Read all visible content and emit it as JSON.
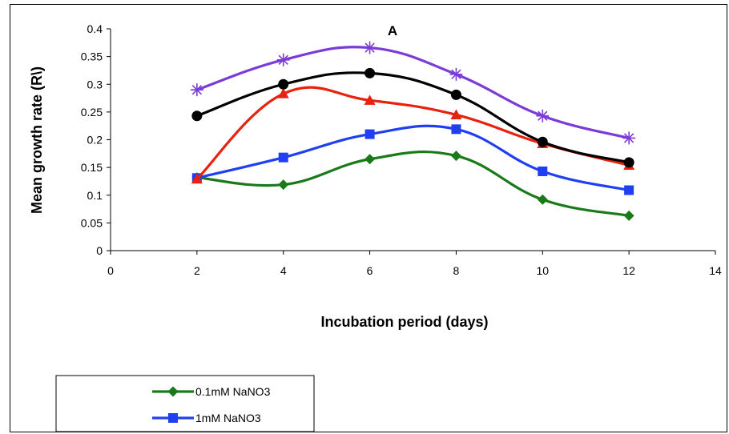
{
  "chart_data": {
    "type": "line",
    "panel_label": "A",
    "xlabel": "Incubation period (days)",
    "ylabel": "Mean growth rate (R\\)",
    "xlim": [
      0,
      14
    ],
    "ylim": [
      0,
      0.4
    ],
    "x_ticks": [
      "0",
      "2",
      "4",
      "6",
      "8",
      "10",
      "12",
      "14"
    ],
    "y_ticks": [
      "0",
      "0.05",
      "0.1",
      "0.15",
      "0.2",
      "0.25",
      "0.3",
      "0.35",
      "0.4"
    ],
    "grid": false,
    "x": [
      2,
      4,
      6,
      8,
      10,
      12
    ],
    "series": [
      {
        "name": "0.1mM NaNO3",
        "color": "#1a7a1a",
        "marker": "diamond",
        "values": [
          0.132,
          0.119,
          0.165,
          0.171,
          0.092,
          0.063
        ]
      },
      {
        "name": "1mM NaNO3",
        "color": "#1f3ff0",
        "marker": "square",
        "values": [
          0.131,
          0.168,
          0.21,
          0.219,
          0.143,
          0.109
        ]
      },
      {
        "color": "#e8220f",
        "marker": "triangle",
        "values": [
          0.129,
          0.283,
          0.271,
          0.245,
          0.193,
          0.154
        ]
      },
      {
        "color": "#000000",
        "marker": "circle",
        "values": [
          0.243,
          0.3,
          0.32,
          0.281,
          0.196,
          0.159
        ]
      },
      {
        "color": "#7b3bd6",
        "marker": "asterisk",
        "values": [
          0.29,
          0.344,
          0.366,
          0.318,
          0.243,
          0.203
        ]
      }
    ],
    "legend_position": "bottom-left"
  }
}
